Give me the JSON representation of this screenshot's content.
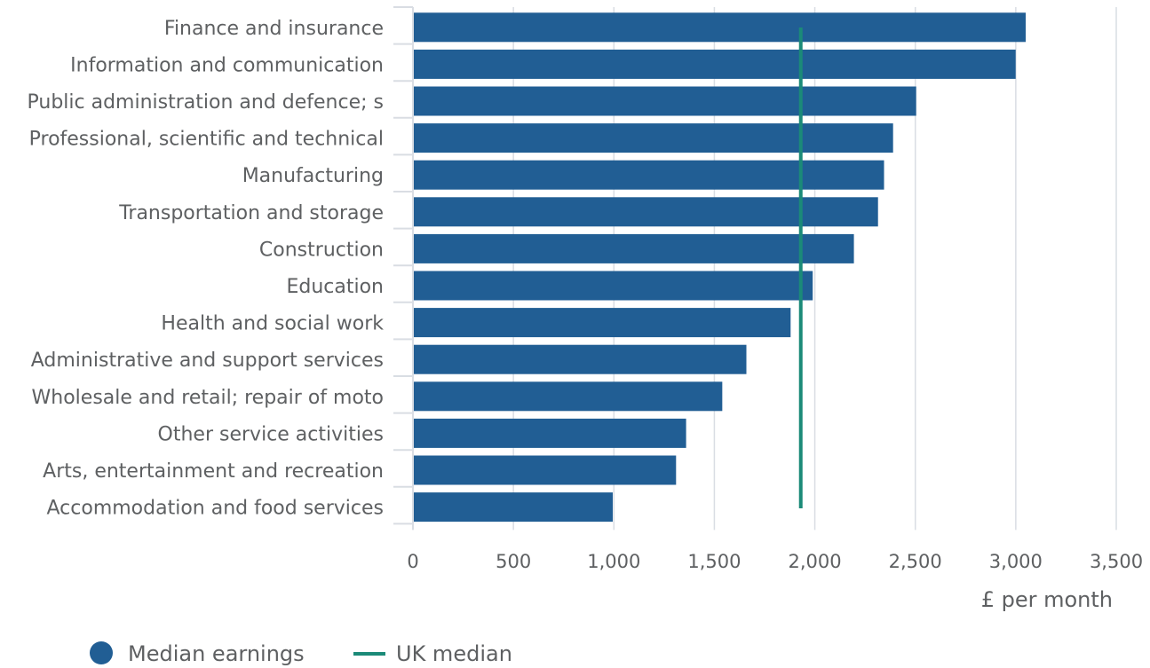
{
  "chart_data": {
    "type": "bar",
    "orientation": "horizontal",
    "categories": [
      "Finance and insurance",
      "Information and communication",
      "Public administration and defence; s",
      "Professional, scientific and technical",
      "Manufacturing",
      "Transportation and storage",
      "Construction",
      "Education",
      "Health and social work",
      "Administrative and support services",
      "Wholesale and retail; repair of moto",
      "Other service activities",
      "Arts, entertainment and recreation",
      "Accommodation and food services"
    ],
    "series": [
      {
        "name": "Median earnings",
        "values": [
          3045,
          2995,
          2500,
          2385,
          2340,
          2310,
          2190,
          1985,
          1875,
          1655,
          1535,
          1355,
          1305,
          990
        ]
      }
    ],
    "reference_line": {
      "name": "UK median",
      "value": 1930
    },
    "x_ticks": [
      0,
      500,
      1000,
      1500,
      2000,
      2500,
      3000,
      3500
    ],
    "x_tick_labels": [
      "0",
      "500",
      "1,000",
      "1,500",
      "2,000",
      "2,500",
      "3,000",
      "3,500"
    ],
    "xlim": [
      0,
      3500
    ],
    "xlabel": "£ per month",
    "grid": true,
    "legend_position": "bottom-left",
    "colors": {
      "bar": "#215e94",
      "reference": "#1b8a78",
      "grid": "#d9dde3",
      "text": "#5e6062"
    }
  }
}
